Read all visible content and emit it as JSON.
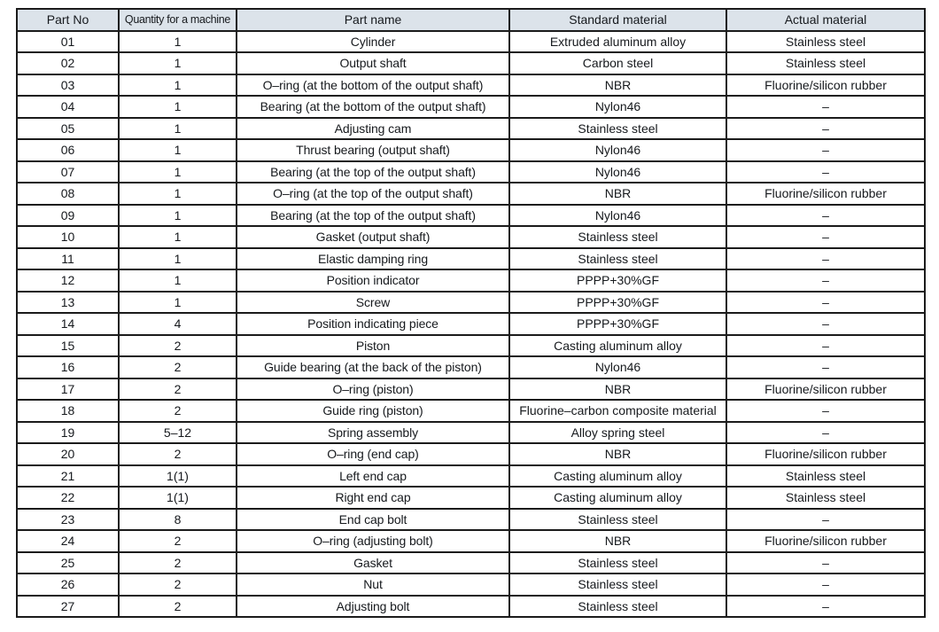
{
  "table": {
    "columns": [
      "Part No",
      "Quantity for a machine",
      "Part name",
      "Standard material",
      "Actual material"
    ],
    "rows": [
      [
        "01",
        "1",
        "Cylinder",
        "Extruded aluminum alloy",
        "Stainless steel"
      ],
      [
        "02",
        "1",
        "Output shaft",
        "Carbon steel",
        "Stainless steel"
      ],
      [
        "03",
        "1",
        "O–ring (at the bottom of the output shaft)",
        "NBR",
        "Fluorine/silicon rubber"
      ],
      [
        "04",
        "1",
        "Bearing (at the bottom of the output shaft)",
        "Nylon46",
        "–"
      ],
      [
        "05",
        "1",
        "Adjusting cam",
        "Stainless steel",
        "–"
      ],
      [
        "06",
        "1",
        "Thrust bearing (output shaft)",
        "Nylon46",
        "–"
      ],
      [
        "07",
        "1",
        "Bearing (at the top of the output shaft)",
        "Nylon46",
        "–"
      ],
      [
        "08",
        "1",
        "O–ring (at the top of the output shaft)",
        "NBR",
        "Fluorine/silicon rubber"
      ],
      [
        "09",
        "1",
        "Bearing (at the top of the output shaft)",
        "Nylon46",
        "–"
      ],
      [
        "10",
        "1",
        "Gasket (output shaft)",
        "Stainless steel",
        "–"
      ],
      [
        "11",
        "1",
        "Elastic damping ring",
        "Stainless steel",
        "–"
      ],
      [
        "12",
        "1",
        "Position indicator",
        "PPPP+30%GF",
        "–"
      ],
      [
        "13",
        "1",
        "Screw",
        "PPPP+30%GF",
        "–"
      ],
      [
        "14",
        "4",
        "Position indicating piece",
        "PPPP+30%GF",
        "–"
      ],
      [
        "15",
        "2",
        "Piston",
        "Casting aluminum alloy",
        "–"
      ],
      [
        "16",
        "2",
        "Guide bearing (at the back of the piston)",
        "Nylon46",
        "–"
      ],
      [
        "17",
        "2",
        "O–ring (piston)",
        "NBR",
        "Fluorine/silicon rubber"
      ],
      [
        "18",
        "2",
        "Guide ring (piston)",
        "Fluorine–carbon composite material",
        "–"
      ],
      [
        "19",
        "5–12",
        "Spring assembly",
        "Alloy spring steel",
        "–"
      ],
      [
        "20",
        "2",
        "O–ring (end cap)",
        "NBR",
        "Fluorine/silicon rubber"
      ],
      [
        "21",
        "1(1)",
        "Left end cap",
        "Casting aluminum alloy",
        "Stainless steel"
      ],
      [
        "22",
        "1(1)",
        "Right end cap",
        "Casting aluminum alloy",
        "Stainless steel"
      ],
      [
        "23",
        "8",
        "End cap bolt",
        "Stainless steel",
        "–"
      ],
      [
        "24",
        "2",
        "O–ring (adjusting bolt)",
        "NBR",
        "Fluorine/silicon rubber"
      ],
      [
        "25",
        "2",
        "Gasket",
        "Stainless steel",
        "–"
      ],
      [
        "26",
        "2",
        "Nut",
        "Stainless steel",
        "–"
      ],
      [
        "27",
        "2",
        "Adjusting bolt",
        "Stainless steel",
        "–"
      ]
    ]
  },
  "colors": {
    "header_bg": "#dce3ea",
    "border": "#1b1b1b",
    "text": "#16191d",
    "page_bg": "#ffffff"
  }
}
